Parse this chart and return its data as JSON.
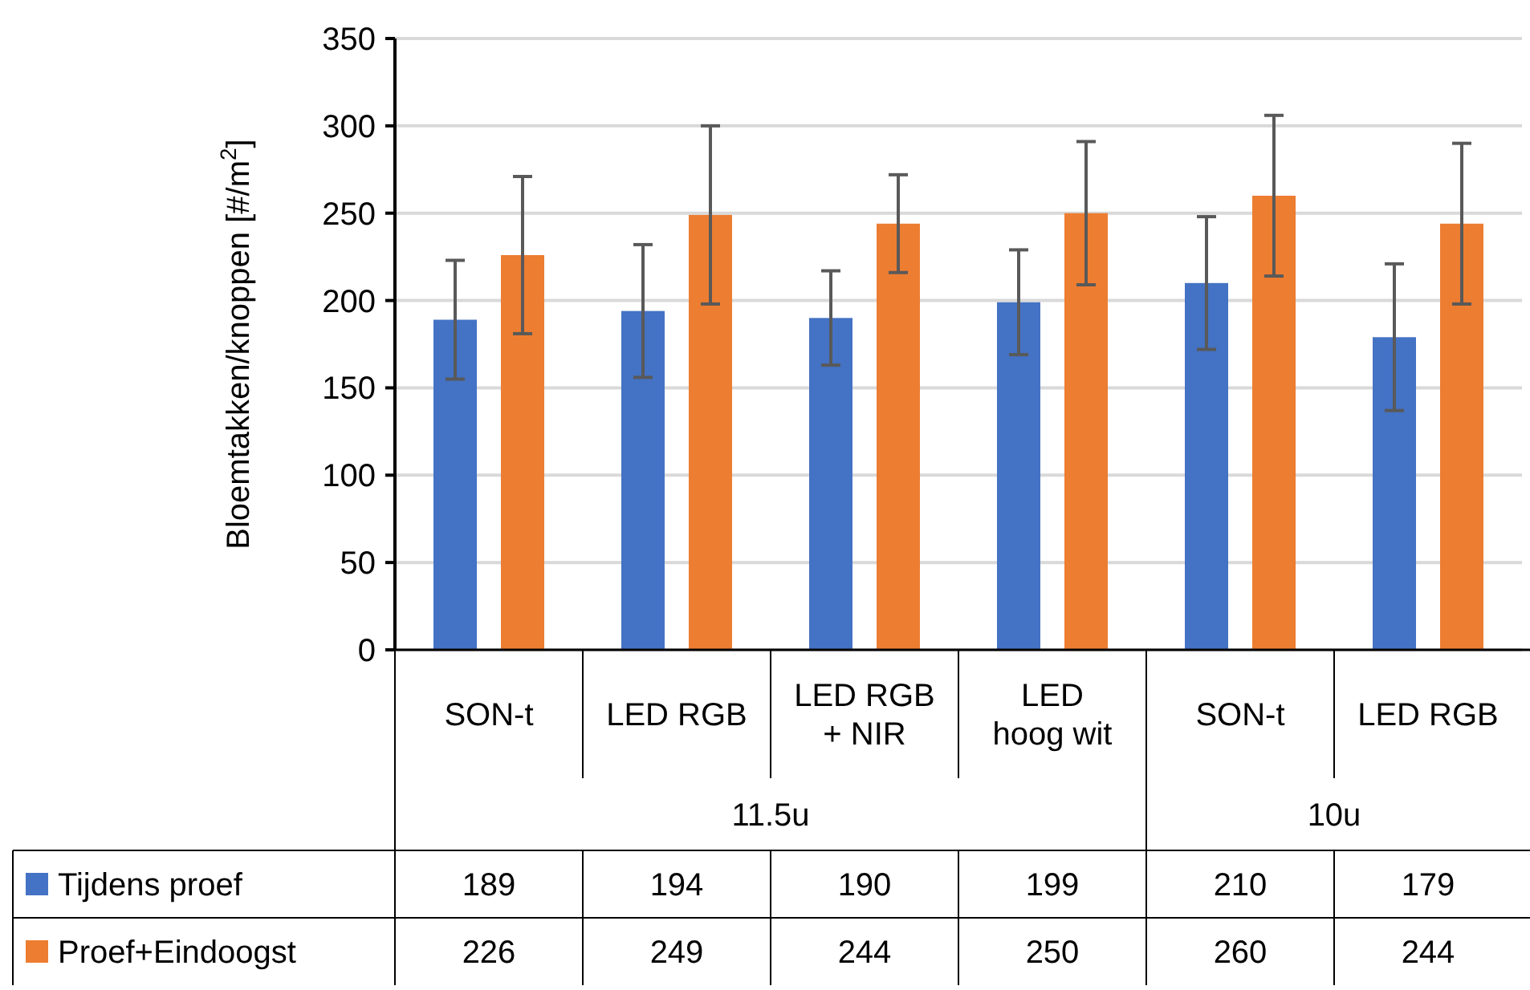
{
  "chart_data": {
    "type": "bar",
    "ylabel": "Bloemtakken/knoppen [#/m$^{2}$]",
    "categories": [
      "SON-t",
      "LED RGB",
      "LED RGB + NIR",
      "LED hoog wit",
      "SON-t",
      "LED RGB"
    ],
    "annotations": [
      "11.5u",
      "10u"
    ],
    "series": [
      {
        "name": "Tijdens proef",
        "color": "#4472c4",
        "values": [
          189,
          194,
          190,
          199,
          210,
          179
        ],
        "errors": [
          34,
          38,
          27,
          30,
          38,
          42
        ]
      },
      {
        "name": "Proef+Eindoogst",
        "color": "#ed7d31",
        "values": [
          226,
          249,
          244,
          250,
          260,
          244
        ],
        "errors": [
          45,
          51,
          28,
          41,
          46,
          46
        ]
      }
    ],
    "ylim": [
      0,
      350
    ],
    "yticks": [
      0,
      50,
      100,
      150,
      200,
      250,
      300,
      350
    ],
    "grid": "y",
    "legend": "bottom",
    "data_labels": true
  }
}
